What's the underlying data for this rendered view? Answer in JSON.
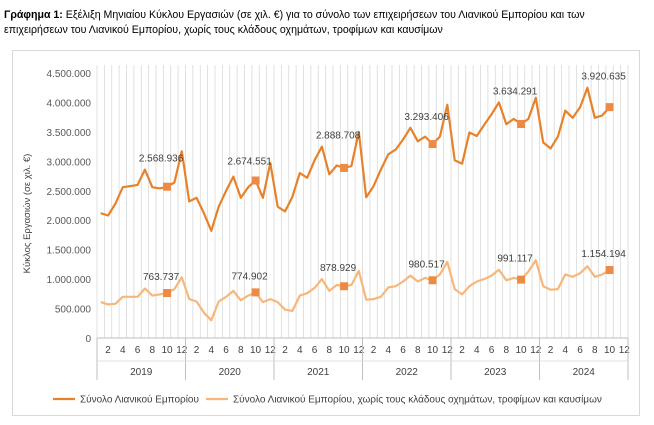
{
  "caption": {
    "label": "Γράφημα 1:",
    "text": "Εξέλιξη Μηνιαίου Κύκλου Εργασιών (σε χιλ. €) για το σύνολο των επιχειρήσεων του Λιανικού Εμπορίου και των επιχειρήσεων του Λιανικού Εμπορίου, χωρίς τους κλάδους οχημάτων, τροφίμων και καυσίμων"
  },
  "chart_data": {
    "type": "line",
    "title": "",
    "ylabel": "Κύκλος Εργασιών (σε χιλ. €)",
    "xlabel": "",
    "ylim": [
      0,
      4500000
    ],
    "yticks": [
      "0",
      "500.000",
      "1.000.000",
      "1.500.000",
      "2.000.000",
      "2.500.000",
      "3.000.000",
      "3.500.000",
      "4.000.000",
      "4.500.000"
    ],
    "ytick_values": [
      0,
      500000,
      1000000,
      1500000,
      2000000,
      2500000,
      3000000,
      3500000,
      4000000,
      4500000
    ],
    "years": [
      "2019",
      "2020",
      "2021",
      "2022",
      "2023",
      "2024"
    ],
    "month_ticks": [
      "2",
      "4",
      "6",
      "8",
      "10",
      "12"
    ],
    "legend_position": "bottom",
    "grid": "vertical gridlines per month",
    "colors": {
      "total": "#E8822A",
      "excl": "#F7B77A",
      "grid": "#d9d9d9",
      "point": "#ED8B46"
    },
    "series": [
      {
        "name": "Σύνολο Λιανικού Εμπορίου",
        "values": [
          2120000,
          2080000,
          2280000,
          2560000,
          2580000,
          2600000,
          2860000,
          2560000,
          2540000,
          2568936,
          2640000,
          3170000,
          2320000,
          2380000,
          2120000,
          1820000,
          2230000,
          2500000,
          2740000,
          2380000,
          2560000,
          2674551,
          2380000,
          2970000,
          2230000,
          2150000,
          2400000,
          2800000,
          2720000,
          3020000,
          3250000,
          2780000,
          2930000,
          2888708,
          2920000,
          3500000,
          2390000,
          2580000,
          2860000,
          3120000,
          3200000,
          3370000,
          3570000,
          3340000,
          3420000,
          3293406,
          3420000,
          3960000,
          3020000,
          2960000,
          3490000,
          3430000,
          3620000,
          3800000,
          4000000,
          3630000,
          3720000,
          3634291,
          3720000,
          4080000,
          3320000,
          3220000,
          3420000,
          3860000,
          3740000,
          3920000,
          4250000,
          3740000,
          3780000,
          3920635
        ],
        "labels": [
          {
            "index": 9,
            "text": "2.568.936"
          },
          {
            "index": 21,
            "text": "2.674.551"
          },
          {
            "index": 33,
            "text": "2.888.708"
          },
          {
            "index": 45,
            "text": "3.293.406"
          },
          {
            "index": 57,
            "text": "3.634.291"
          },
          {
            "index": 69,
            "text": "3.920.635"
          }
        ]
      },
      {
        "name": "Σύνολο Λιανικού Εμπορίου, χωρίς τους κλάδους οχημάτων, τροφίμων και καυσίμων",
        "values": [
          610000,
          570000,
          580000,
          700000,
          700000,
          700000,
          840000,
          720000,
          740000,
          763737,
          830000,
          1030000,
          660000,
          620000,
          430000,
          300000,
          620000,
          700000,
          800000,
          640000,
          720000,
          774902,
          610000,
          660000,
          610000,
          480000,
          460000,
          720000,
          760000,
          850000,
          1000000,
          800000,
          900000,
          878929,
          900000,
          1140000,
          650000,
          660000,
          700000,
          860000,
          880000,
          960000,
          1060000,
          960000,
          1020000,
          980517,
          1080000,
          1290000,
          830000,
          740000,
          880000,
          960000,
          1000000,
          1060000,
          1160000,
          980000,
          1020000,
          991117,
          1130000,
          1320000,
          880000,
          820000,
          830000,
          1080000,
          1040000,
          1100000,
          1220000,
          1040000,
          1080000,
          1154194
        ],
        "labels": [
          {
            "index": 9,
            "text": "763.737"
          },
          {
            "index": 21,
            "text": "774.902"
          },
          {
            "index": 33,
            "text": "878.929"
          },
          {
            "index": 45,
            "text": "980.517"
          },
          {
            "index": 57,
            "text": "991.117"
          },
          {
            "index": 69,
            "text": "1.154.194"
          }
        ]
      }
    ]
  }
}
